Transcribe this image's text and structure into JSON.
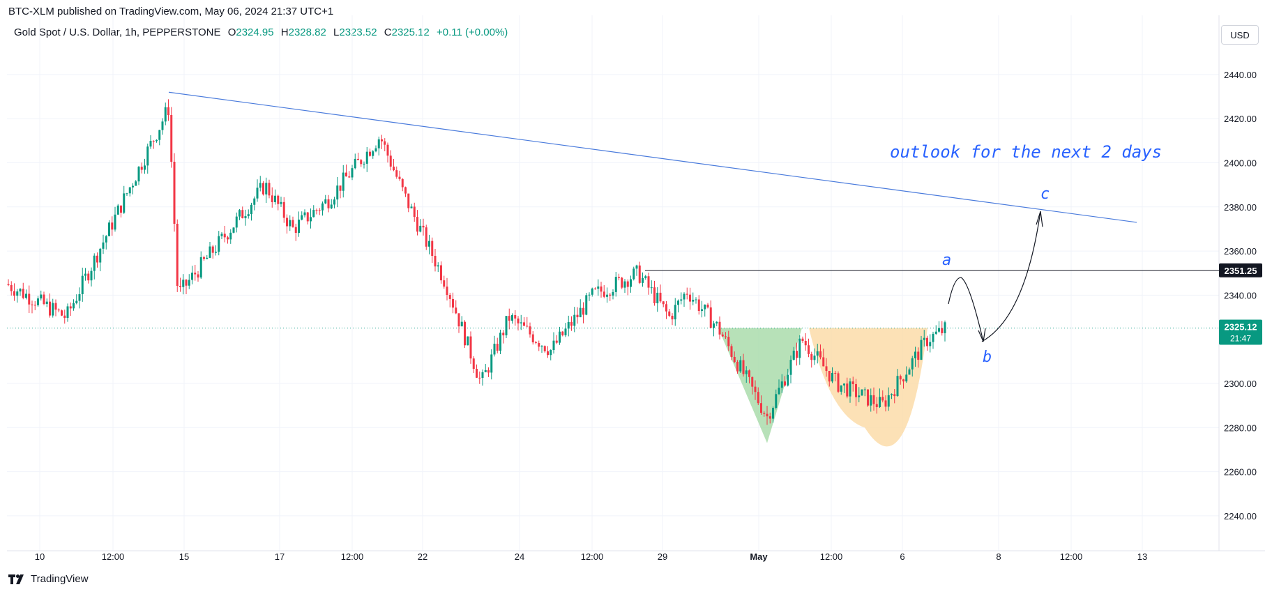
{
  "header": {
    "published": "BTC-XLM published on TradingView.com, May 06, 2024 21:37 UTC+1"
  },
  "legend": {
    "symbol": "Gold Spot / U.S. Dollar, 1h, PEPPERSTONE",
    "o_label": "O",
    "o": "2324.95",
    "h_label": "H",
    "h": "2328.82",
    "l_label": "L",
    "l": "2323.52",
    "c_label": "C",
    "c": "2325.12",
    "change": "+0.11 (+0.00%)"
  },
  "currency": "USD",
  "footer": {
    "brand": "TradingView"
  },
  "colors": {
    "up": "#089981",
    "down": "#f23645",
    "trendline": "#4a7bdc",
    "annotation": "#2962ff",
    "green_fill": "#9fd7a0",
    "orange_fill": "#fbd9a4"
  },
  "chart_data": {
    "type": "candlestick",
    "title": "Gold Spot / U.S. Dollar, 1h, PEPPERSTONE",
    "xlabel": "",
    "ylabel": "",
    "ylim": [
      2230,
      2460
    ],
    "y_ticks": [
      "2440.00",
      "2420.00",
      "2400.00",
      "2380.00",
      "2360.00",
      "2340.00",
      "2300.00",
      "2280.00",
      "2260.00",
      "2240.00"
    ],
    "x_ticks": [
      "10",
      "12:00",
      "15",
      "17",
      "12:00",
      "22",
      "24",
      "12:00",
      "29",
      "May",
      "12:00",
      "6",
      "8",
      "12:00",
      "13"
    ],
    "price_close": 2325.12,
    "price_close_time": "21:47",
    "resistance_level": 2351.25,
    "series_key_points": [
      {
        "t": "Apr 9",
        "price": 2345
      },
      {
        "t": "Apr 10",
        "price": 2330
      },
      {
        "t": "Apr 12",
        "price": 2425
      },
      {
        "t": "Apr 12",
        "price": 2340
      },
      {
        "t": "Apr 15",
        "price": 2370
      },
      {
        "t": "Apr 16",
        "price": 2390
      },
      {
        "t": "Apr 17",
        "price": 2370
      },
      {
        "t": "Apr 18",
        "price": 2383
      },
      {
        "t": "Apr 19",
        "price": 2412
      },
      {
        "t": "Apr 19",
        "price": 2385
      },
      {
        "t": "Apr 22",
        "price": 2345
      },
      {
        "t": "Apr 23",
        "price": 2300
      },
      {
        "t": "Apr 24",
        "price": 2330
      },
      {
        "t": "Apr 25",
        "price": 2315
      },
      {
        "t": "Apr 26",
        "price": 2340
      },
      {
        "t": "Apr 26",
        "price": 2350
      },
      {
        "t": "Apr 29",
        "price": 2330
      },
      {
        "t": "Apr 30",
        "price": 2342
      },
      {
        "t": "Apr 30",
        "price": 2325
      },
      {
        "t": "May 1",
        "price": 2285
      },
      {
        "t": "May 2",
        "price": 2320
      },
      {
        "t": "May 3",
        "price": 2300
      },
      {
        "t": "May 3",
        "price": 2290
      },
      {
        "t": "May 6",
        "price": 2320
      },
      {
        "t": "May 6",
        "price": 2325
      }
    ],
    "trendline": {
      "from": {
        "t": "Apr 12",
        "price": 2432
      },
      "to": {
        "t": "May 13",
        "price": 2373
      }
    },
    "annotations": [
      "outlook for the next 2 days",
      "a",
      "b",
      "c"
    ],
    "price_labels": {
      "resistance": "2351.25",
      "current": "2325.12"
    }
  }
}
